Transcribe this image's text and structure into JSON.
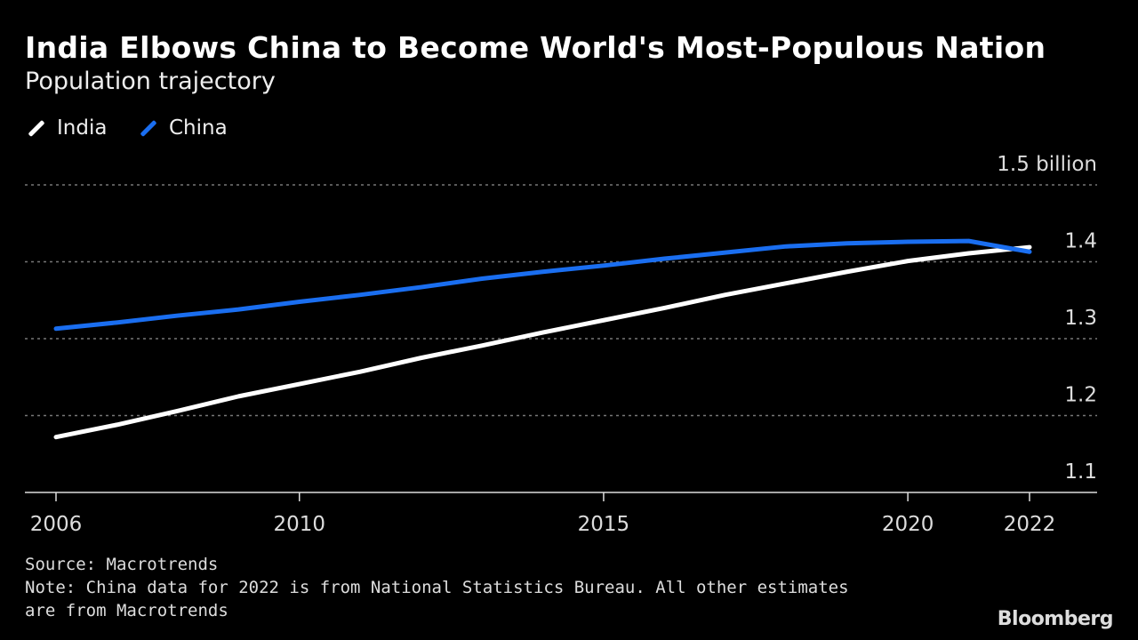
{
  "title": "India Elbows China to Become World's Most-Populous Nation",
  "subtitle": "Population trajectory",
  "source": "Source: Macrotrends",
  "note_line1": "Note: China data for 2022 is from National Statistics Bureau. All other estimates",
  "note_line2": "are from Macrotrends",
  "logo": "Bloomberg",
  "colors": {
    "India": "#ffffff",
    "China": "#1a6ef0",
    "grid": "#777777",
    "background": "#000000"
  },
  "chart_data": {
    "type": "line",
    "title": "India Elbows China to Become World's Most-Populous Nation",
    "subtitle": "Population trajectory",
    "x": [
      2006,
      2007,
      2008,
      2009,
      2010,
      2011,
      2012,
      2013,
      2014,
      2015,
      2016,
      2017,
      2018,
      2019,
      2020,
      2021,
      2022
    ],
    "series": [
      {
        "name": "India",
        "values": [
          1.172,
          1.188,
          1.206,
          1.225,
          1.241,
          1.257,
          1.275,
          1.291,
          1.308,
          1.324,
          1.34,
          1.357,
          1.372,
          1.387,
          1.401,
          1.411,
          1.419
        ]
      },
      {
        "name": "China",
        "values": [
          1.313,
          1.321,
          1.33,
          1.338,
          1.348,
          1.357,
          1.367,
          1.378,
          1.387,
          1.395,
          1.404,
          1.412,
          1.42,
          1.424,
          1.426,
          1.427,
          1.413
        ]
      }
    ],
    "xlim": [
      2006,
      2022
    ],
    "ylim": [
      1.1,
      1.5
    ],
    "x_ticks": [
      "2006",
      "2010",
      "2015",
      "2020",
      "2022"
    ],
    "y_ticks": [
      "1.1",
      "1.2",
      "1.3",
      "1.4",
      "1.5 billion"
    ],
    "y_axis_side": "right",
    "grid": true,
    "legend_placement": "top-left"
  }
}
